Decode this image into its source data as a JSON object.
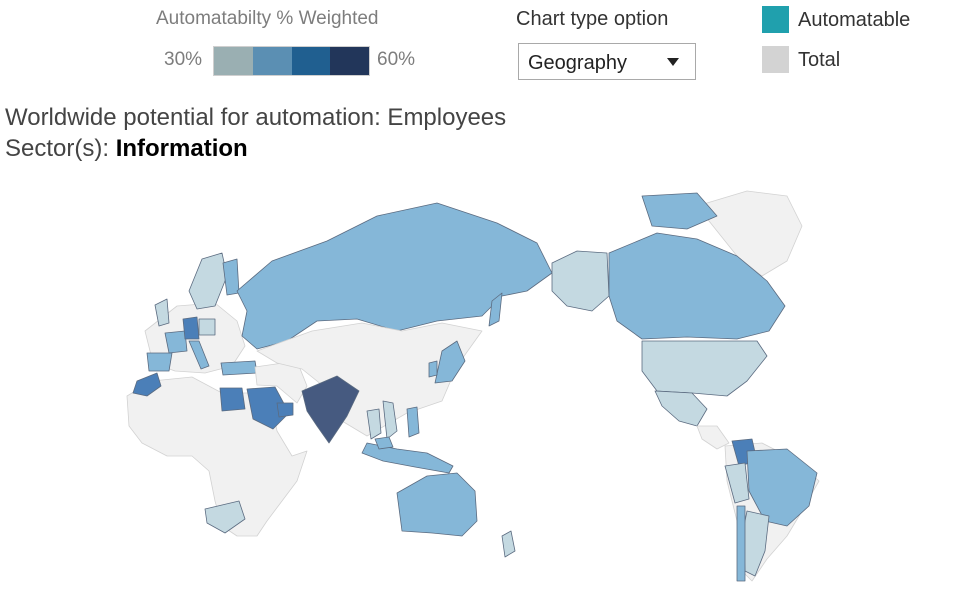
{
  "legend": {
    "title": "Automatabilty % Weighted",
    "min_label": "30%",
    "max_label": "60%",
    "scale_colors": [
      "#9aafb2",
      "#5b8fb3",
      "#205f90",
      "#22365a"
    ]
  },
  "chart_type": {
    "label": "Chart type option",
    "selected": "Geography"
  },
  "series_legend": [
    {
      "label": "Automatable",
      "color": "#20a0ad"
    },
    {
      "label": "Total",
      "color": "#d3d3d3"
    }
  ],
  "title": "Worldwide potential for automation: Employees",
  "subtitle": {
    "prefix": "Sector(s):",
    "value": "Information"
  },
  "map": {
    "colors": {
      "ocean": "#ffffff",
      "no_data": "#f1f1f1",
      "border": "#d2d2d2",
      "light": "#c4d9e1",
      "medium": "#85b7d8",
      "dark": "#4b7fb8",
      "darkest": "#465a80"
    }
  }
}
